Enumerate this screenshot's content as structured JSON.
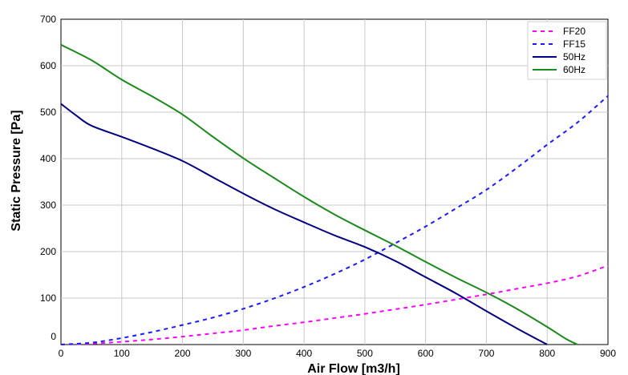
{
  "chart_data": {
    "type": "line",
    "xlabel": "Air Flow [m3/h]",
    "ylabel": "Static Pressure [Pa]",
    "xlim": [
      0,
      900
    ],
    "ylim": [
      0,
      700
    ],
    "x_ticks": [
      "0",
      "100",
      "200",
      "300",
      "400",
      "500",
      "600",
      "700",
      "800",
      "900"
    ],
    "y_ticks": [
      "0",
      "100",
      "200",
      "300",
      "400",
      "500",
      "600",
      "700"
    ],
    "grid": true,
    "legend_position": "top-right",
    "series": [
      {
        "name": "FF20",
        "color": "#ff00ff",
        "style": "dashed",
        "x": [
          0,
          50,
          100,
          150,
          200,
          250,
          300,
          350,
          400,
          450,
          500,
          550,
          600,
          650,
          700,
          750,
          800,
          850,
          900
        ],
        "y": [
          0,
          2,
          6,
          11,
          17,
          24,
          31,
          40,
          48,
          57,
          66,
          76,
          86,
          97,
          108,
          120,
          132,
          147,
          170
        ]
      },
      {
        "name": "FF15",
        "color": "#1a1aff",
        "style": "dashed",
        "x": [
          0,
          50,
          100,
          150,
          200,
          250,
          300,
          350,
          400,
          450,
          500,
          550,
          600,
          650,
          700,
          750,
          800,
          850,
          900
        ],
        "y": [
          0,
          4,
          14,
          27,
          42,
          58,
          77,
          99,
          124,
          152,
          183,
          218,
          254,
          293,
          333,
          380,
          430,
          478,
          535
        ]
      },
      {
        "name": "50Hz",
        "color": "#000080",
        "style": "solid",
        "x": [
          0,
          25,
          50,
          100,
          150,
          200,
          250,
          300,
          350,
          400,
          450,
          500,
          550,
          600,
          650,
          700,
          750,
          800
        ],
        "y": [
          518,
          493,
          471,
          447,
          422,
          395,
          360,
          325,
          292,
          263,
          235,
          210,
          180,
          145,
          110,
          72,
          35,
          0
        ]
      },
      {
        "name": "60Hz",
        "color": "#1a8a1a",
        "style": "solid",
        "x": [
          0,
          50,
          100,
          150,
          200,
          250,
          300,
          350,
          400,
          450,
          500,
          550,
          600,
          650,
          700,
          750,
          800,
          830,
          850
        ],
        "y": [
          645,
          612,
          570,
          534,
          495,
          447,
          401,
          359,
          318,
          280,
          246,
          213,
          178,
          144,
          112,
          77,
          38,
          13,
          0
        ]
      }
    ]
  }
}
